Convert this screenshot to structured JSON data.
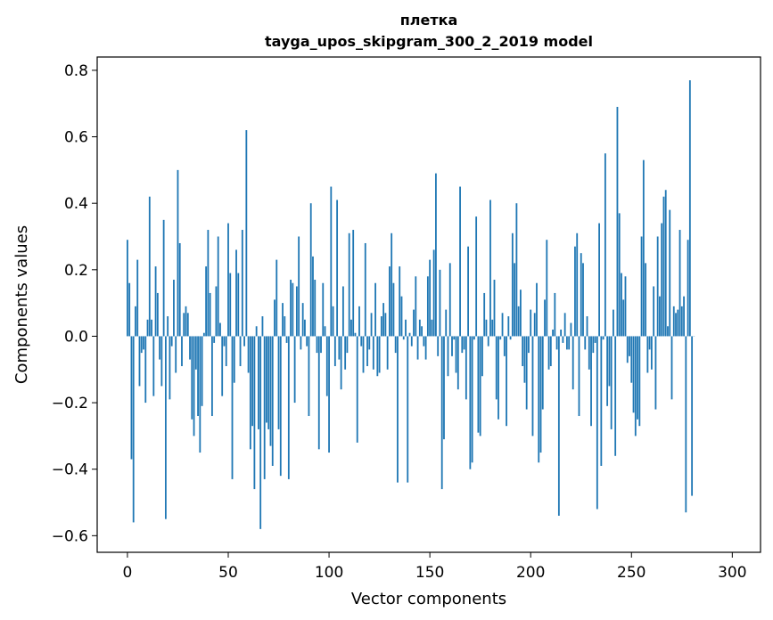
{
  "chart_data": {
    "type": "bar",
    "title": "плетка",
    "subtitle": "tayga_upos_skipgram_300_2_2019 model",
    "xlabel": "Vector components",
    "ylabel": "Components values",
    "xlim": [
      -15,
      314
    ],
    "ylim": [
      -0.65,
      0.84
    ],
    "xticks": [
      0,
      50,
      100,
      150,
      200,
      250,
      300
    ],
    "xtick_labels": [
      "0",
      "50",
      "100",
      "150",
      "200",
      "250",
      "300"
    ],
    "yticks": [
      -0.6,
      -0.4,
      -0.2,
      0.0,
      0.2,
      0.4,
      0.6,
      0.8
    ],
    "ytick_labels": [
      "−0.6",
      "−0.4",
      "−0.2",
      "0.0",
      "0.2",
      "0.4",
      "0.6",
      "0.8"
    ],
    "bar_color": "#1f77b4",
    "values": [
      0.29,
      0.16,
      -0.37,
      -0.56,
      0.09,
      0.23,
      -0.15,
      -0.05,
      -0.04,
      -0.2,
      0.05,
      0.42,
      0.05,
      -0.18,
      0.21,
      0.13,
      -0.07,
      -0.15,
      0.35,
      -0.55,
      0.06,
      -0.19,
      -0.03,
      0.17,
      -0.11,
      0.5,
      0.28,
      -0.09,
      0.07,
      0.09,
      0.07,
      -0.07,
      -0.25,
      -0.3,
      -0.1,
      -0.24,
      -0.35,
      -0.21,
      0.01,
      0.21,
      0.32,
      0.13,
      -0.24,
      -0.02,
      0.15,
      0.3,
      0.04,
      -0.18,
      -0.03,
      -0.09,
      0.34,
      0.19,
      -0.43,
      -0.14,
      0.26,
      0.19,
      -0.09,
      0.32,
      -0.03,
      0.62,
      -0.11,
      -0.34,
      -0.27,
      -0.46,
      0.03,
      -0.28,
      -0.58,
      0.06,
      -0.43,
      -0.26,
      -0.28,
      -0.33,
      -0.39,
      0.11,
      0.23,
      -0.28,
      -0.42,
      0.1,
      0.06,
      -0.02,
      -0.43,
      0.17,
      0.16,
      -0.2,
      0.15,
      0.3,
      -0.04,
      0.1,
      0.05,
      -0.03,
      -0.24,
      0.4,
      0.24,
      0.17,
      -0.05,
      -0.34,
      -0.05,
      0.16,
      0.03,
      -0.18,
      -0.35,
      0.45,
      0.09,
      -0.09,
      0.41,
      -0.07,
      -0.16,
      0.15,
      -0.1,
      -0.05,
      0.31,
      0.05,
      0.32,
      0.01,
      -0.32,
      0.09,
      -0.03,
      -0.11,
      0.28,
      -0.09,
      -0.04,
      0.07,
      -0.1,
      0.16,
      -0.12,
      -0.11,
      0.06,
      0.1,
      0.07,
      -0.1,
      0.21,
      0.31,
      0.16,
      -0.05,
      -0.44,
      0.21,
      0.12,
      -0.01,
      0.05,
      -0.44,
      0.01,
      -0.03,
      0.08,
      0.18,
      -0.07,
      0.05,
      0.03,
      -0.03,
      -0.07,
      0.18,
      0.23,
      0.05,
      0.26,
      0.49,
      -0.06,
      0.2,
      -0.46,
      -0.31,
      0.08,
      -0.12,
      0.22,
      -0.06,
      -0.01,
      -0.11,
      -0.16,
      0.45,
      -0.05,
      -0.04,
      -0.19,
      0.27,
      -0.4,
      -0.38,
      -0.01,
      0.36,
      -0.29,
      -0.3,
      -0.12,
      0.13,
      0.05,
      -0.03,
      0.41,
      0.05,
      0.17,
      -0.19,
      -0.25,
      -0.01,
      0.07,
      -0.06,
      -0.27,
      0.06,
      -0.01,
      0.31,
      0.22,
      0.4,
      0.09,
      0.14,
      -0.09,
      -0.14,
      -0.22,
      -0.05,
      0.08,
      -0.3,
      0.07,
      0.16,
      -0.38,
      -0.35,
      -0.22,
      0.11,
      0.29,
      -0.1,
      -0.09,
      0.02,
      0.13,
      -0.04,
      -0.54,
      0.02,
      -0.02,
      0.07,
      -0.04,
      -0.04,
      0.04,
      -0.16,
      0.27,
      0.31,
      -0.24,
      0.25,
      0.22,
      -0.04,
      0.06,
      -0.1,
      -0.27,
      -0.05,
      -0.02,
      -0.52,
      0.34,
      -0.39,
      -0.01,
      0.55,
      -0.21,
      -0.15,
      -0.28,
      0.08,
      -0.36,
      0.69,
      0.37,
      0.19,
      0.11,
      0.18,
      -0.08,
      -0.06,
      -0.14,
      -0.23,
      -0.3,
      -0.25,
      -0.27,
      0.3,
      0.53,
      0.22,
      -0.11,
      -0.04,
      -0.1,
      0.15,
      -0.22,
      0.3,
      0.12,
      0.34,
      0.42,
      0.44,
      0.03,
      0.38,
      -0.19,
      0.09,
      0.07,
      0.08,
      0.32,
      0.09,
      0.12,
      -0.53,
      0.29,
      0.77,
      -0.48,
      0.0
    ]
  }
}
